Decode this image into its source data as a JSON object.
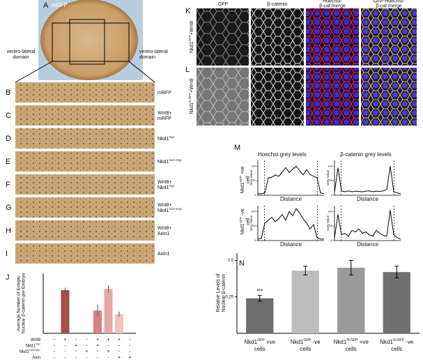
{
  "panel_a": {
    "letter": "A",
    "label": "mRFP",
    "left_domain": [
      [
        "ventro-lateral"
      ],
      [
        "domain"
      ]
    ],
    "right_domain": [
      [
        "ventro-lateral"
      ],
      [
        "domain"
      ]
    ]
  },
  "strips": [
    {
      "letter": "B",
      "label": [
        [
          "mRFP"
        ]
      ]
    },
    {
      "letter": "C",
      "label": [
        [
          "Wnt8+"
        ],
        [
          "mRFP"
        ]
      ]
    },
    {
      "letter": "D",
      "label": [
        [
          "Nkd1",
          "myc"
        ]
      ]
    },
    {
      "letter": "E",
      "label": [
        [
          "Nkd1",
          "G2A-myc"
        ]
      ]
    },
    {
      "letter": "F",
      "label": [
        [
          "Wnt8+"
        ],
        [
          "Nkd1",
          "myc"
        ]
      ]
    },
    {
      "letter": "G",
      "label": [
        [
          "Wnt8+"
        ],
        [
          "Nkd1",
          "G2A-myc"
        ]
      ]
    },
    {
      "letter": "H",
      "label": [
        [
          "Wnt8+"
        ],
        [
          "Axin1"
        ]
      ]
    },
    {
      "letter": "I",
      "label": [
        [
          "Axin1"
        ]
      ]
    }
  ],
  "kl": {
    "columns": [
      [
        [
          "GFP"
        ]
      ],
      [
        [
          "β-catenin"
        ]
      ],
      [
        [
          "Hoechst-"
        ],
        [
          "β-cat merge"
        ]
      ],
      [
        [
          "GFP-Hoechst-"
        ],
        [
          "β-cat merge"
        ]
      ]
    ],
    "rows": [
      {
        "letter": "K",
        "label": [
          "Nkd1",
          "GFP",
          "+Wnt8"
        ]
      },
      {
        "letter": "L",
        "label": [
          "Nkd1",
          "N-GFP",
          "+Wnt8"
        ]
      }
    ]
  },
  "m": {
    "letter": "M",
    "column_titles": [
      "Hoechst grey levels",
      "β-catenin grey levels"
    ],
    "row_labels": [
      [
        [
          "Nkd1",
          "GFP",
          " +ve"
        ],
        [
          "cell"
        ]
      ],
      [
        [
          "Nkd1",
          "GFP",
          " -ve"
        ],
        [
          "cell"
        ]
      ]
    ]
  },
  "chart_data": [
    {
      "type": "bar",
      "letter": "J",
      "y_label": [
        [
          "Average Number of Ectopic"
        ],
        [
          "Nuclear β-catenin per Embryo"
        ]
      ],
      "ylim": [
        0,
        250
      ],
      "values": [
        0,
        180,
        0,
        0,
        95,
        185,
        80,
        0
      ],
      "errors": [
        0,
        10,
        0,
        0,
        25,
        15,
        10,
        0
      ],
      "colors": [
        "#a84c4c",
        "#a84c4c",
        "#d98080",
        "#d98080",
        "#d98080",
        "#e8a7a7",
        "#f0c2c2",
        "#f0c2c2"
      ],
      "conditions": [
        {
          "name": [
            "Wnt8"
          ],
          "signs": [
            "-",
            "+",
            "-",
            "-",
            "+",
            "+",
            "+",
            "-"
          ]
        },
        {
          "name": [
            "Nkd1",
            "myc"
          ],
          "signs": [
            "-",
            "-",
            "+",
            "-",
            "+",
            "-",
            "-",
            "-"
          ]
        },
        {
          "name": [
            "Nkd1",
            "G2A-myc"
          ],
          "signs": [
            "-",
            "-",
            "-",
            "+",
            "-",
            "+",
            "-",
            "-"
          ]
        },
        {
          "name": [
            "Axin"
          ],
          "signs": [
            "-",
            "-",
            "-",
            "-",
            "-",
            "-",
            "+",
            "+"
          ]
        }
      ]
    },
    {
      "type": "line",
      "x_label": "Distance",
      "y_label": "Grey Value",
      "ylim": [
        0,
        120
      ],
      "yticks": [
        0,
        50,
        100
      ],
      "color": "#000000",
      "values": [
        5,
        5,
        8,
        60,
        62,
        70,
        65,
        80,
        95,
        78,
        90,
        100,
        85,
        70,
        88,
        72,
        65,
        60,
        8,
        5
      ]
    },
    {
      "type": "line",
      "x_label": "Distance",
      "y_label": "Grey Value",
      "ylim": [
        0,
        120
      ],
      "yticks": [
        0,
        50,
        100
      ],
      "color": "#000000",
      "values": [
        10,
        95,
        15,
        12,
        15,
        12,
        14,
        13,
        12,
        14,
        15,
        12,
        14,
        13,
        15,
        20,
        100,
        12,
        8,
        5
      ]
    },
    {
      "type": "line",
      "x_label": "Distance",
      "y_label": "Grey Value",
      "ylim": [
        0,
        120
      ],
      "yticks": [
        0,
        50,
        100
      ],
      "color": "#000000",
      "values": [
        5,
        8,
        60,
        70,
        80,
        65,
        75,
        90,
        70,
        100,
        85,
        110,
        95,
        75,
        60,
        40,
        55,
        10,
        5,
        5
      ]
    },
    {
      "type": "line",
      "x_label": "Distance",
      "y_label": "Grey Value",
      "ylim": [
        0,
        120
      ],
      "yticks": [
        0,
        50,
        100
      ],
      "color": "#000000",
      "values": [
        10,
        90,
        20,
        25,
        15,
        35,
        30,
        40,
        25,
        30,
        20,
        15,
        35,
        25,
        18,
        15,
        105,
        20,
        10,
        5
      ]
    },
    {
      "type": "bar",
      "letter": "N",
      "y_label": [
        [
          "Relative Levels of"
        ],
        [
          "Nuclear β-catenin"
        ]
      ],
      "ylim": [
        0,
        0.55
      ],
      "yticks": [
        0.25,
        0.5
      ],
      "categories": [
        [
          [
            "Nkd1",
            "GFP",
            " +ve"
          ],
          [
            "cells"
          ]
        ],
        [
          [
            "Nkd1",
            "GFP",
            " -ve"
          ],
          [
            "cells"
          ]
        ],
        [
          [
            "Nkd1",
            "N-GFP",
            " +ve"
          ],
          [
            "cells"
          ]
        ],
        [
          [
            "Nkd1",
            "N-GFP",
            " -ve"
          ],
          [
            "cells"
          ]
        ]
      ],
      "values": [
        0.24,
        0.43,
        0.45,
        0.42
      ],
      "errors": [
        0.02,
        0.03,
        0.05,
        0.04
      ],
      "colors": [
        "#6e6e6e",
        "#bdbdbd",
        "#9a9a9a",
        "#707070"
      ],
      "annotation": "***"
    }
  ]
}
